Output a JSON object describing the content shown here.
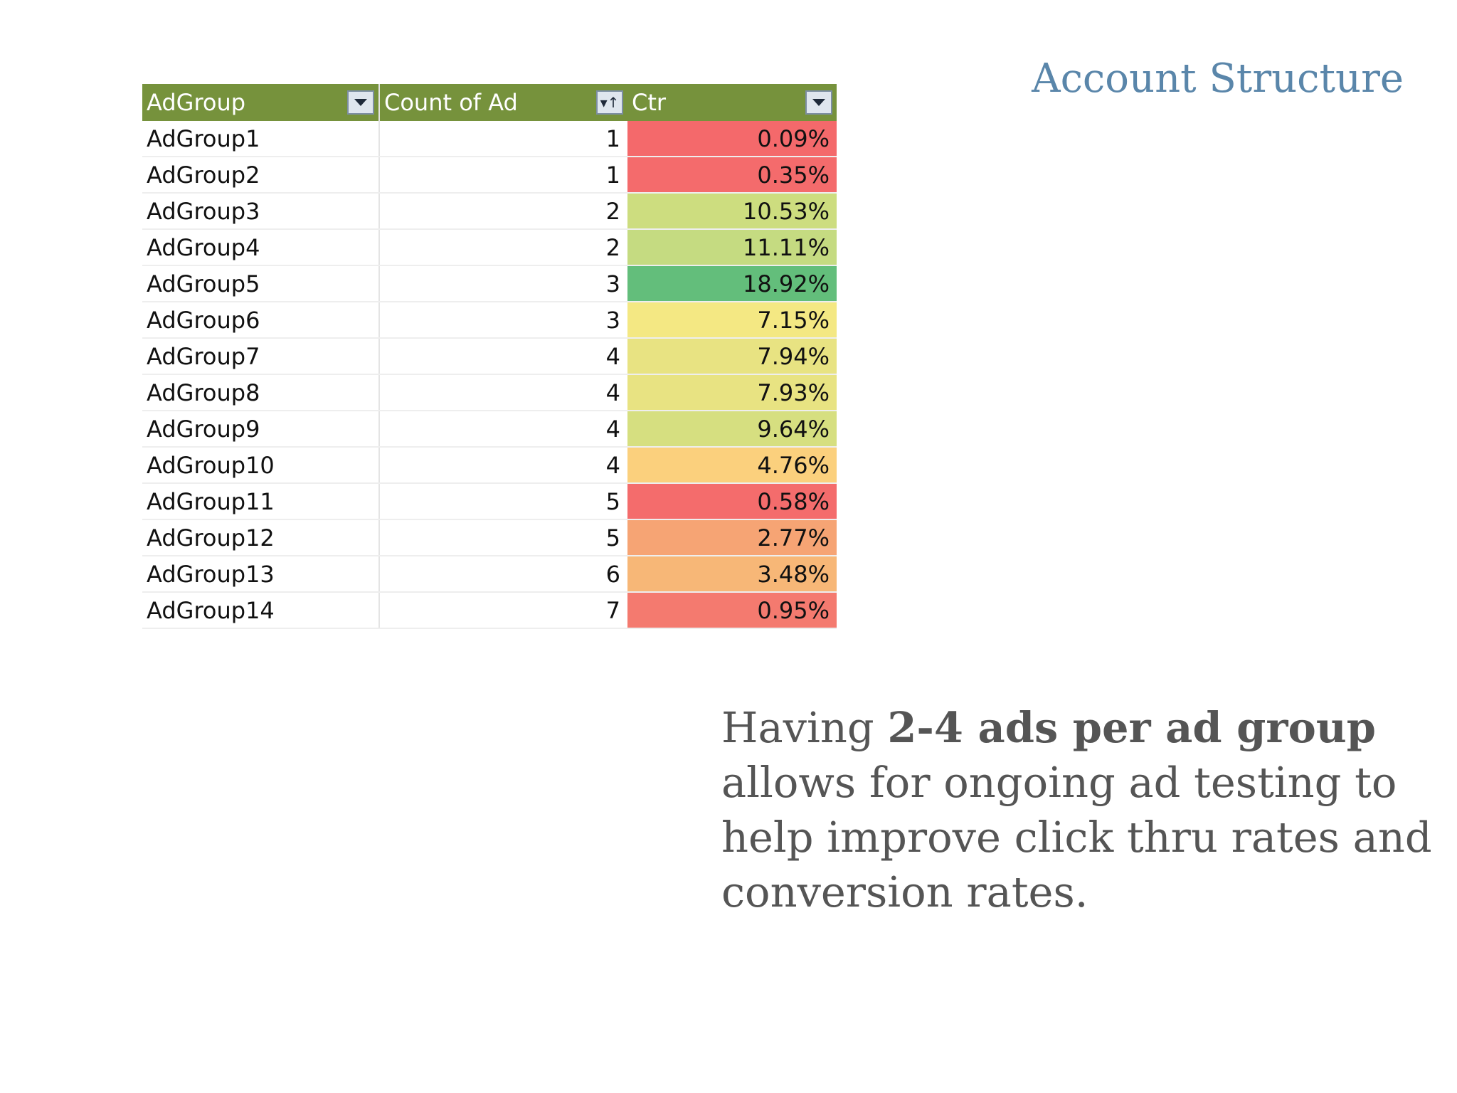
{
  "slide": {
    "title": "Account Structure"
  },
  "table": {
    "headers": {
      "adgroup": "AdGroup",
      "count": "Count of Ad",
      "ctr": "Ctr"
    },
    "rows": [
      {
        "adgroup": "AdGroup1",
        "count": "1",
        "ctr": "0.09%",
        "ctr_color": "#f4696b"
      },
      {
        "adgroup": "AdGroup2",
        "count": "1",
        "ctr": "0.35%",
        "ctr_color": "#f46b6c"
      },
      {
        "adgroup": "AdGroup3",
        "count": "2",
        "ctr": "10.53%",
        "ctr_color": "#cddd7f"
      },
      {
        "adgroup": "AdGroup4",
        "count": "2",
        "ctr": "11.11%",
        "ctr_color": "#c5db81"
      },
      {
        "adgroup": "AdGroup5",
        "count": "3",
        "ctr": "18.92%",
        "ctr_color": "#63be7b"
      },
      {
        "adgroup": "AdGroup6",
        "count": "3",
        "ctr": "7.15%",
        "ctr_color": "#f4e883"
      },
      {
        "adgroup": "AdGroup7",
        "count": "4",
        "ctr": "7.94%",
        "ctr_color": "#e8e382"
      },
      {
        "adgroup": "AdGroup8",
        "count": "4",
        "ctr": "7.93%",
        "ctr_color": "#e8e382"
      },
      {
        "adgroup": "AdGroup9",
        "count": "4",
        "ctr": "9.64%",
        "ctr_color": "#d6df80"
      },
      {
        "adgroup": "AdGroup10",
        "count": "4",
        "ctr": "4.76%",
        "ctr_color": "#fbd07d"
      },
      {
        "adgroup": "AdGroup11",
        "count": "5",
        "ctr": "0.58%",
        "ctr_color": "#f46c6c"
      },
      {
        "adgroup": "AdGroup12",
        "count": "5",
        "ctr": "2.77%",
        "ctr_color": "#f6a474"
      },
      {
        "adgroup": "AdGroup13",
        "count": "6",
        "ctr": "3.48%",
        "ctr_color": "#f7b777"
      },
      {
        "adgroup": "AdGroup14",
        "count": "7",
        "ctr": "0.95%",
        "ctr_color": "#f47a6f"
      }
    ]
  },
  "body": {
    "prefix": "Having ",
    "bold": "2-4 ads per ad group",
    "suffix": " allows for ongoing ad testing to help improve click thru rates and conversion rates."
  },
  "icons": {
    "adgroup_filter": "filter-dropdown-icon",
    "count_filter": "sort-ascending-filter-icon",
    "ctr_filter": "filter-dropdown-icon"
  }
}
